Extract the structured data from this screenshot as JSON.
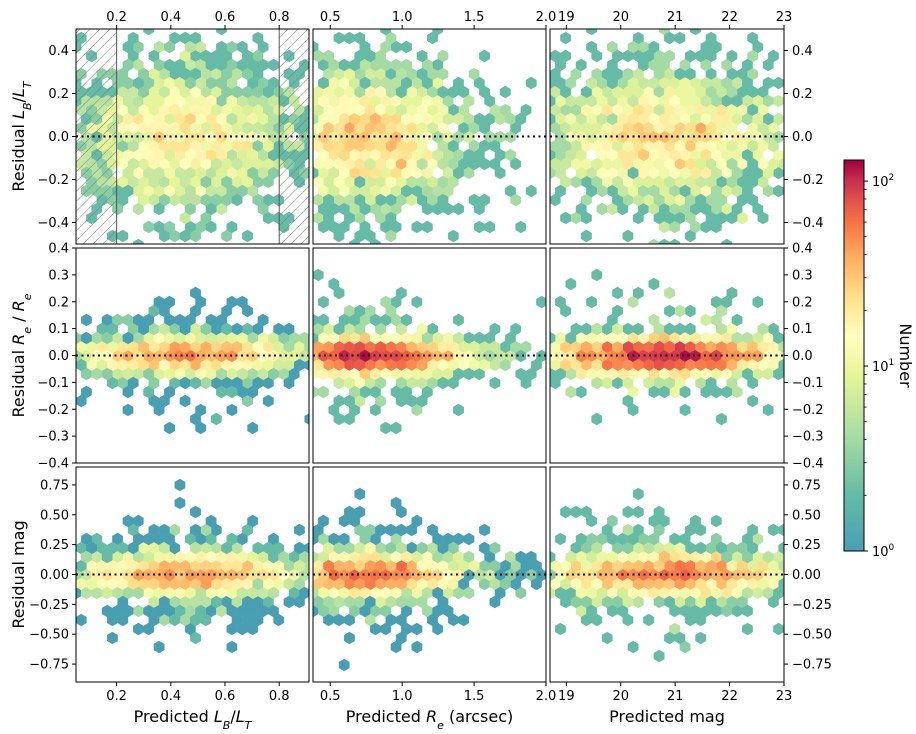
{
  "chart_data": {
    "type": "heatmap",
    "subtype": "hexbin residual panels",
    "grid": false,
    "colormap": "Spectral_r",
    "colorbar": {
      "label": "Number",
      "scale": "log",
      "range": [
        1,
        130
      ],
      "tick_values": [
        1,
        10,
        100
      ],
      "tick_labels": [
        "10",
        "10",
        "10"
      ],
      "tick_exponents": [
        "0",
        "1",
        "2"
      ],
      "placement": "right"
    },
    "columns": [
      {
        "xlabel": "Predicted L_B/L_T",
        "xlim": [
          0.05,
          0.91
        ],
        "xticks": [
          0.2,
          0.4,
          0.6,
          0.8
        ],
        "xtick_labels": [
          "0.2",
          "0.4",
          "0.6",
          "0.8"
        ],
        "center": 0.45,
        "spread": 0.2,
        "hatched_regions": [
          [
            0.05,
            0.2
          ],
          [
            0.8,
            0.91
          ]
        ],
        "hatch_line_color": "#777777"
      },
      {
        "xlabel": "Predicted R_e (arcsec)",
        "xlim": [
          0.38,
          2.0
        ],
        "xticks": [
          0.5,
          1.0,
          1.5,
          2.0
        ],
        "xtick_labels": [
          "0.5",
          "1.0",
          "1.5",
          "2.0"
        ],
        "center": 0.75,
        "spread": 0.3
      },
      {
        "xlabel": "Predicted mag",
        "xlim": [
          18.7,
          23.0
        ],
        "xticks": [
          19,
          20,
          21,
          22,
          23
        ],
        "xtick_labels": [
          "19",
          "20",
          "21",
          "22",
          "23"
        ],
        "center": 20.8,
        "spread": 1.0
      }
    ],
    "rows": [
      {
        "ylabel": "Residual L_B/L_T",
        "ylim": [
          -0.5,
          0.5
        ],
        "yticks": [
          -0.4,
          -0.2,
          0.0,
          0.2,
          0.4
        ],
        "ytick_labels": [
          "−0.4",
          "−0.2",
          "0.0",
          "0.2",
          "0.4"
        ],
        "reference_line": 0.0,
        "spread": 0.15
      },
      {
        "ylabel": "Residual R_e / R_e",
        "ylim": [
          -0.4,
          0.4
        ],
        "yticks": [
          -0.4,
          -0.3,
          -0.2,
          -0.1,
          0.0,
          0.1,
          0.2,
          0.3,
          0.4
        ],
        "ytick_labels": [
          "−0.4",
          "−0.3",
          "−0.2",
          "−0.1",
          "0.0",
          "0.1",
          "0.2",
          "0.3",
          "0.4"
        ],
        "reference_line": 0.0,
        "spread": 0.035
      },
      {
        "ylabel": "Residual mag",
        "ylim": [
          -0.9,
          0.9
        ],
        "yticks": [
          -0.75,
          -0.5,
          -0.25,
          0.0,
          0.25,
          0.5,
          0.75
        ],
        "ytick_labels": [
          "−0.75",
          "−0.50",
          "−0.25",
          "0.00",
          "0.25",
          "0.50",
          "0.75"
        ],
        "reference_line": 0.0,
        "spread": 0.09
      }
    ],
    "peak_counts": [
      [
        30,
        40,
        40
      ],
      [
        60,
        120,
        120
      ],
      [
        50,
        70,
        70
      ]
    ],
    "sample_size_per_panel": 1900
  }
}
